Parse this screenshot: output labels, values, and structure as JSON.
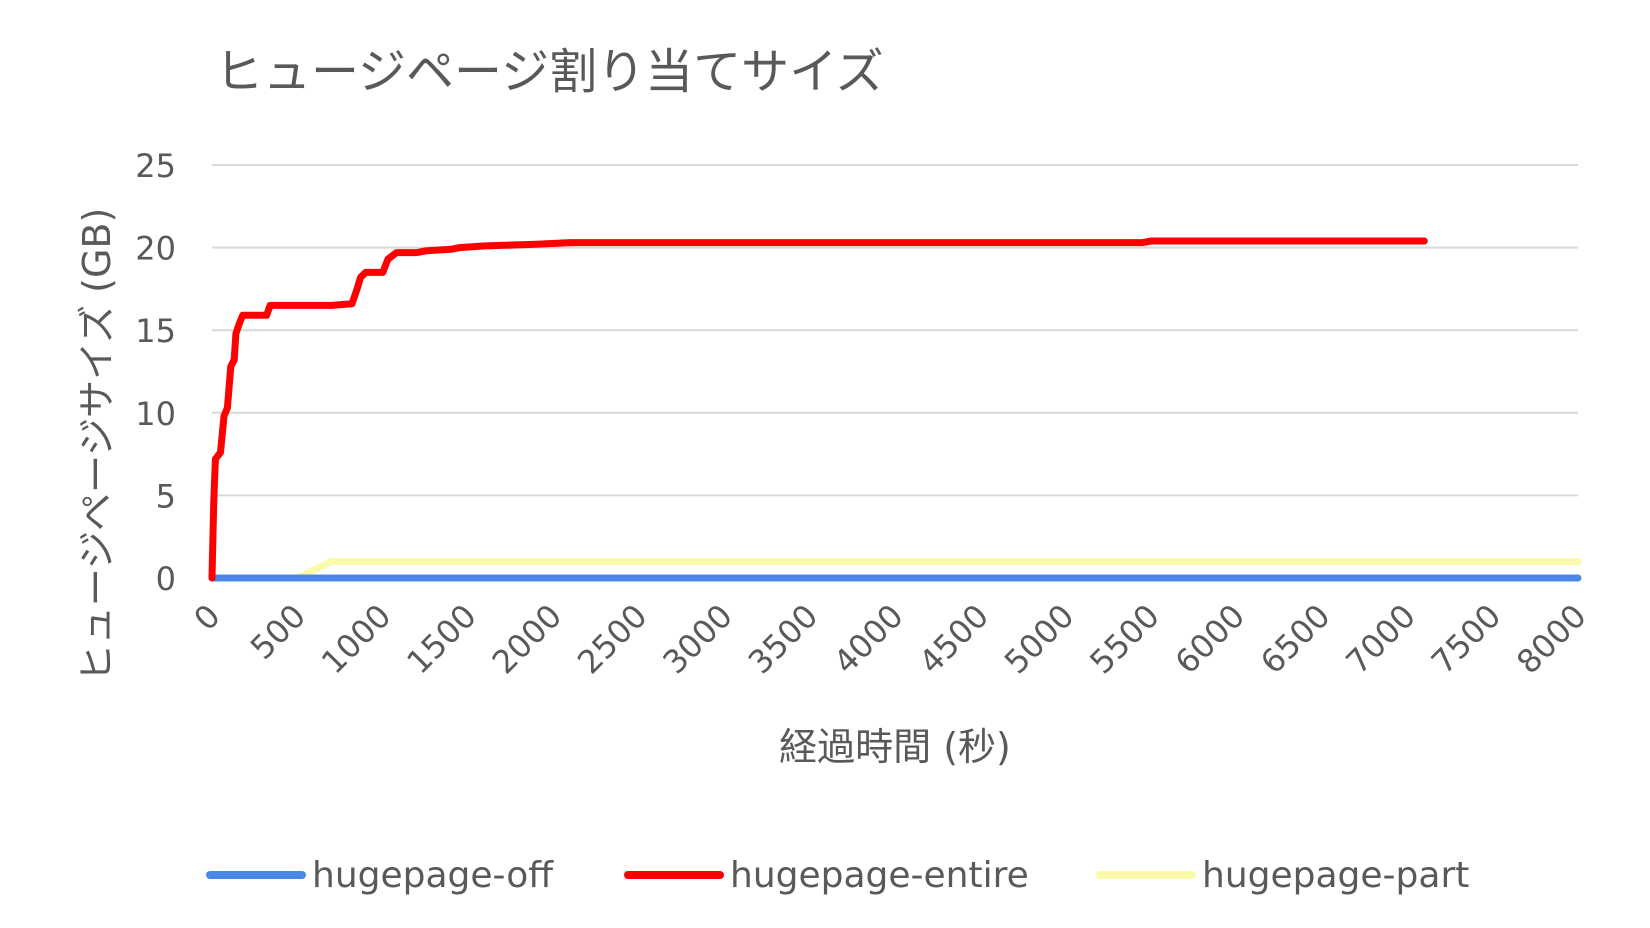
{
  "chart_data": {
    "type": "line",
    "title": "ヒュージページ割り当てサイズ",
    "xlabel": "経過時間 (秒)",
    "ylabel": "ヒュージページサイズ (GB)",
    "xlim": [
      0,
      8000
    ],
    "ylim": [
      0,
      25
    ],
    "x_ticks": [
      "0",
      "500",
      "1000",
      "1500",
      "2000",
      "2500",
      "3000",
      "3500",
      "4000",
      "4500",
      "5000",
      "5500",
      "6000",
      "6500",
      "7000",
      "7500",
      "8000"
    ],
    "y_ticks": [
      "0",
      "5",
      "10",
      "15",
      "20",
      "25"
    ],
    "grid": true,
    "legend_position": "bottom",
    "series": [
      {
        "name": "hugepage-off",
        "color": "#4a86e8",
        "points": [
          [
            0,
            0
          ],
          [
            8000,
            0
          ]
        ]
      },
      {
        "name": "hugepage-entire",
        "color": "#ff0000",
        "points": [
          [
            0,
            0
          ],
          [
            10,
            4.5
          ],
          [
            20,
            7.2
          ],
          [
            50,
            7.6
          ],
          [
            70,
            9.8
          ],
          [
            90,
            10.3
          ],
          [
            110,
            12.8
          ],
          [
            130,
            13.2
          ],
          [
            140,
            14.8
          ],
          [
            160,
            15.4
          ],
          [
            180,
            15.9
          ],
          [
            220,
            15.9
          ],
          [
            320,
            15.9
          ],
          [
            340,
            16.5
          ],
          [
            500,
            16.5
          ],
          [
            700,
            16.5
          ],
          [
            820,
            16.6
          ],
          [
            850,
            17.5
          ],
          [
            870,
            18.2
          ],
          [
            900,
            18.5
          ],
          [
            1000,
            18.5
          ],
          [
            1030,
            19.3
          ],
          [
            1080,
            19.7
          ],
          [
            1200,
            19.7
          ],
          [
            1250,
            19.8
          ],
          [
            1400,
            19.9
          ],
          [
            1450,
            20.0
          ],
          [
            1600,
            20.1
          ],
          [
            1900,
            20.2
          ],
          [
            2100,
            20.3
          ],
          [
            3000,
            20.3
          ],
          [
            4000,
            20.3
          ],
          [
            5000,
            20.3
          ],
          [
            5450,
            20.3
          ],
          [
            5500,
            20.4
          ],
          [
            7100,
            20.4
          ]
        ]
      },
      {
        "name": "hugepage-part",
        "color": "#fafaaa",
        "points": [
          [
            0,
            0
          ],
          [
            500,
            0
          ],
          [
            700,
            1.0
          ],
          [
            1000,
            1.0
          ],
          [
            8000,
            1.0
          ]
        ]
      }
    ]
  }
}
